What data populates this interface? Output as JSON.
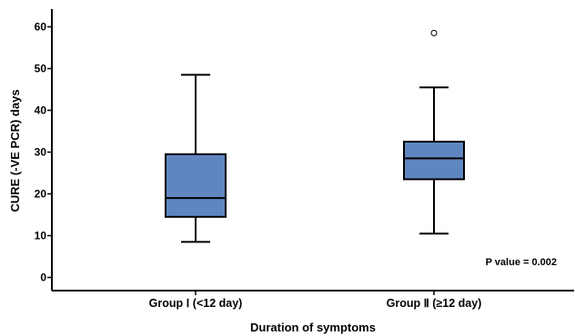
{
  "chart_data": {
    "type": "boxplot",
    "xlabel": "Duration of symptoms",
    "ylabel": "CURE (-VE PCR) days",
    "ylim": [
      -2,
      63
    ],
    "yticks": [
      0,
      10,
      20,
      30,
      40,
      50,
      60
    ],
    "categories": [
      "Group Ⅰ (<12 day)",
      "Group Ⅱ (≥12 day)"
    ],
    "boxes": [
      {
        "whisker_low": 8.5,
        "q1": 14.5,
        "median": 19,
        "q3": 29.5,
        "whisker_high": 48.5,
        "outliers": []
      },
      {
        "whisker_low": 10.5,
        "q1": 23.5,
        "median": 28.5,
        "q3": 32.5,
        "whisker_high": 45.5,
        "outliers": [
          58.5
        ]
      }
    ],
    "annotation": "P value = 0.002",
    "colors": {
      "box_fill": "#5f86c0",
      "stroke": "#000000"
    }
  }
}
